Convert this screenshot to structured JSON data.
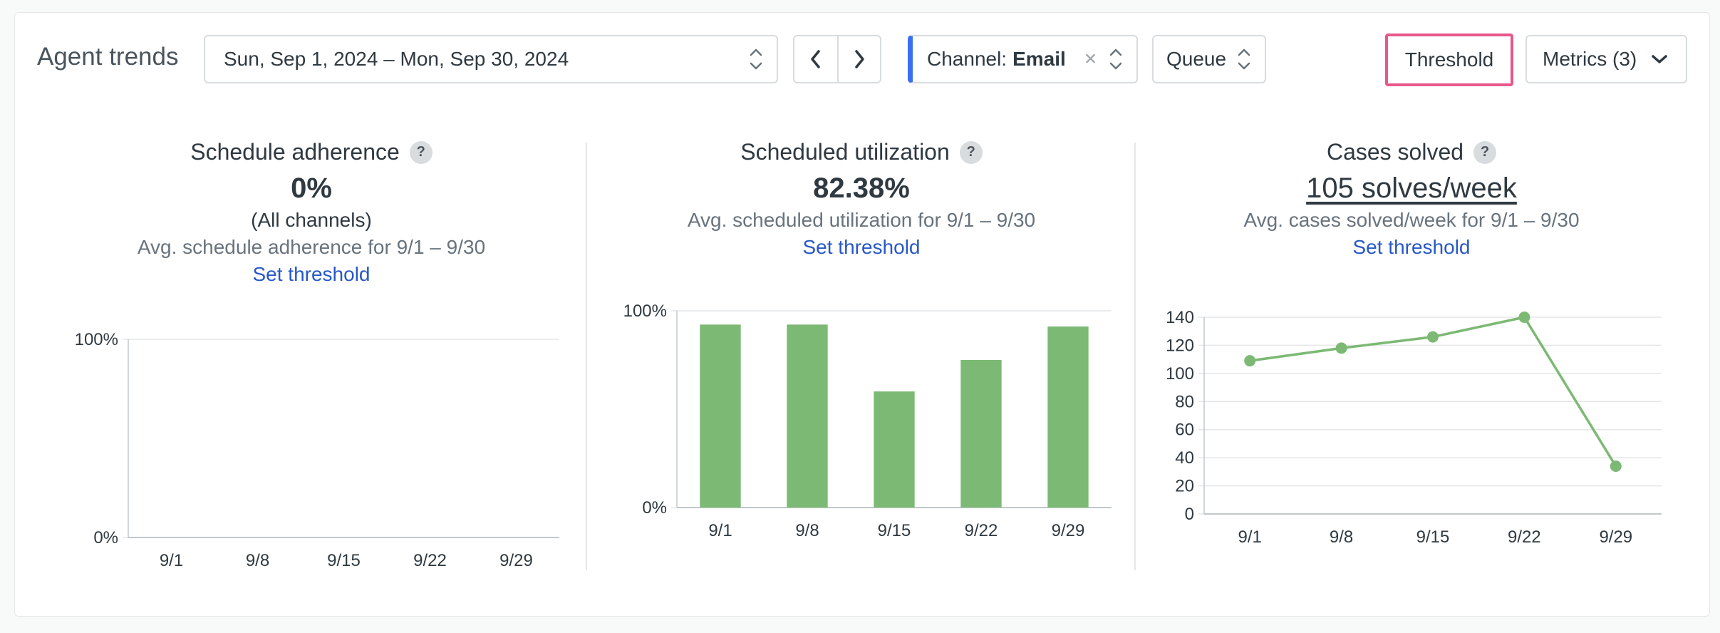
{
  "toolbar": {
    "title": "Agent trends",
    "date_range": "Sun, Sep 1, 2024 – Mon, Sep 30, 2024",
    "channel_label": "Channel:",
    "channel_value": "Email",
    "queue_label": "Queue",
    "threshold_label": "Threshold",
    "metrics_label": "Metrics (3)"
  },
  "panels": [
    {
      "title": "Schedule adherence",
      "value": "0%",
      "sub": "(All channels)",
      "avg": "Avg. schedule adherence for 9/1 – 9/30",
      "link": "Set threshold"
    },
    {
      "title": "Scheduled utilization",
      "value": "82.38%",
      "avg": "Avg. scheduled utilization for 9/1 – 9/30",
      "link": "Set threshold"
    },
    {
      "title": "Cases solved",
      "value": "105 solves/week",
      "avg": "Avg. cases solved/week for 9/1 – 9/30",
      "link": "Set threshold"
    }
  ],
  "colors": {
    "bar": "#7cb974",
    "line": "#7cb974",
    "accent": "#3b6ef5",
    "highlight": "#e8588b"
  },
  "chart_data": [
    {
      "type": "bar",
      "categories": [
        "9/1",
        "9/8",
        "9/15",
        "9/22",
        "9/29"
      ],
      "values": [
        null,
        null,
        null,
        null,
        null
      ],
      "ylim": [
        0,
        100
      ],
      "yticks": [
        "0%",
        "100%"
      ]
    },
    {
      "type": "bar",
      "categories": [
        "9/1",
        "9/8",
        "9/15",
        "9/22",
        "9/29"
      ],
      "values": [
        93,
        93,
        59,
        75,
        92
      ],
      "ylim": [
        0,
        100
      ],
      "yticks": [
        "0%",
        "100%"
      ]
    },
    {
      "type": "line",
      "categories": [
        "9/1",
        "9/8",
        "9/15",
        "9/22",
        "9/29"
      ],
      "values": [
        109,
        118,
        126,
        140,
        34
      ],
      "ylim": [
        0,
        140
      ],
      "yticks": [
        "0",
        "20",
        "40",
        "60",
        "80",
        "100",
        "120",
        "140"
      ],
      "grid": true
    }
  ]
}
